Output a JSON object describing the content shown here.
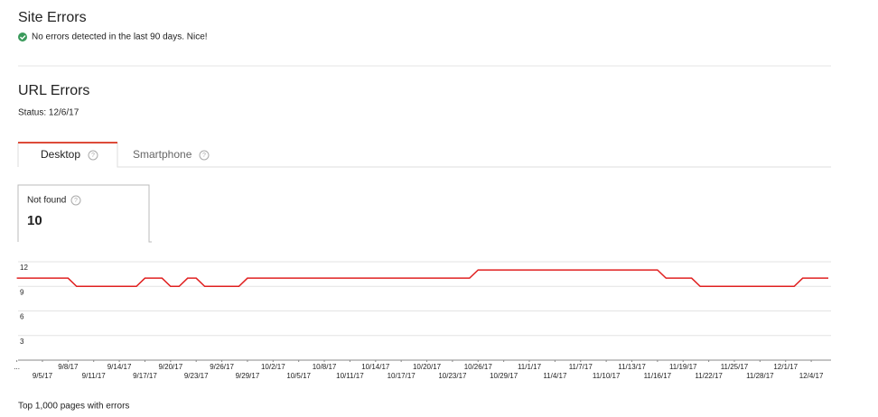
{
  "site_errors": {
    "title": "Site Errors",
    "message": "No errors detected in the last 90 days. Nice!"
  },
  "url_errors": {
    "title": "URL Errors",
    "status": "Status: 12/6/17",
    "tabs": [
      "Desktop",
      "Smartphone"
    ],
    "card": {
      "label": "Not found",
      "value": 10
    }
  },
  "chart_data": {
    "type": "line",
    "color": "#e02020",
    "grid": true,
    "categories": [
      "...",
      null,
      null,
      "9/5/17",
      null,
      null,
      "9/8/17",
      null,
      null,
      "9/11/17",
      null,
      null,
      "9/14/17",
      null,
      null,
      "9/17/17",
      null,
      null,
      "9/20/17",
      null,
      null,
      "9/23/17",
      null,
      null,
      "9/26/17",
      null,
      null,
      "9/29/17",
      null,
      null,
      "10/2/17",
      null,
      null,
      "10/5/17",
      null,
      null,
      "10/8/17",
      null,
      null,
      "10/11/17",
      null,
      null,
      "10/14/17",
      null,
      null,
      "10/17/17",
      null,
      null,
      "10/20/17",
      null,
      null,
      "10/23/17",
      null,
      null,
      "10/26/17",
      null,
      null,
      "10/29/17",
      null,
      null,
      "11/1/17",
      null,
      null,
      "11/4/17",
      null,
      null,
      "11/7/17",
      null,
      null,
      "11/10/17",
      null,
      null,
      "11/13/17",
      null,
      null,
      "11/16/17",
      null,
      null,
      "11/19/17",
      null,
      null,
      "11/22/17",
      null,
      null,
      "11/25/17",
      null,
      null,
      "11/28/17",
      null,
      null,
      "12/1/17",
      null,
      null,
      "12/4/17",
      null,
      null
    ],
    "values": [
      10,
      10,
      10,
      10,
      10,
      10,
      10,
      9,
      9,
      9,
      9,
      9,
      9,
      9,
      9,
      10,
      10,
      10,
      9,
      9,
      10,
      10,
      9,
      9,
      9,
      9,
      9,
      10,
      10,
      10,
      10,
      10,
      10,
      10,
      10,
      10,
      10,
      10,
      10,
      10,
      10,
      10,
      10,
      10,
      10,
      10,
      10,
      10,
      10,
      10,
      10,
      10,
      10,
      10,
      11,
      11,
      11,
      11,
      11,
      11,
      11,
      11,
      11,
      11,
      11,
      11,
      11,
      11,
      11,
      11,
      11,
      11,
      11,
      11,
      11,
      11,
      10,
      10,
      10,
      10,
      9,
      9,
      9,
      9,
      9,
      9,
      9,
      9,
      9,
      9,
      9,
      9,
      10,
      10,
      10,
      10
    ],
    "ylim": [
      0,
      12
    ],
    "yticks": [
      3,
      6,
      9,
      12
    ]
  },
  "footer": "Top 1,000 pages with errors"
}
